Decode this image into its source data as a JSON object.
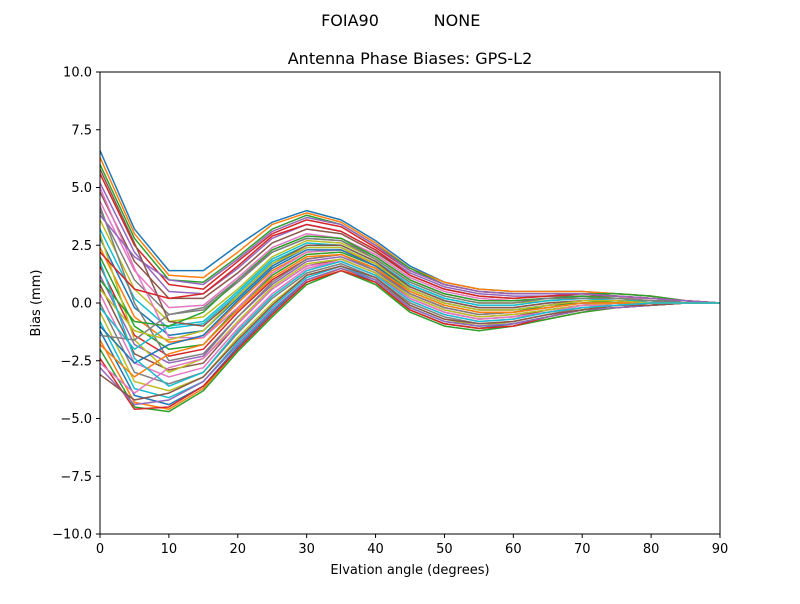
{
  "figure": {
    "suptitle_left": "FOIA90",
    "suptitle_right": "NONE"
  },
  "chart_data": {
    "type": "line",
    "title": "Antenna Phase Biases: GPS-L2",
    "xlabel": "Elvation angle (degrees)",
    "ylabel": "Bias (mm)",
    "xlim": [
      0,
      90
    ],
    "ylim": [
      -10,
      10
    ],
    "xticks": [
      0,
      10,
      20,
      30,
      40,
      50,
      60,
      70,
      80,
      90
    ],
    "yticks": [
      -10.0,
      -7.5,
      -5.0,
      -2.5,
      0.0,
      2.5,
      5.0,
      7.5,
      10.0
    ],
    "grid": false,
    "legend": "none",
    "colors": [
      "#1f77b4",
      "#ff7f0e",
      "#2ca02c",
      "#d62728",
      "#9467bd",
      "#8c564b",
      "#e377c2",
      "#7f7f7f",
      "#bcbd22",
      "#17becf"
    ],
    "x": [
      0,
      5,
      10,
      15,
      20,
      25,
      30,
      35,
      40,
      45,
      50,
      55,
      60,
      65,
      70,
      75,
      80,
      85,
      90
    ],
    "series": [
      {
        "values": [
          6.6,
          3.2,
          1.4,
          1.4,
          2.5,
          3.5,
          4.0,
          3.6,
          2.7,
          1.6,
          0.9,
          0.6,
          0.5,
          0.5,
          0.5,
          0.4,
          0.3,
          0.1,
          0.0
        ]
      },
      {
        "values": [
          6.3,
          3.0,
          1.2,
          1.1,
          2.2,
          3.4,
          3.9,
          3.5,
          2.6,
          1.5,
          0.9,
          0.6,
          0.5,
          0.5,
          0.5,
          0.4,
          0.3,
          0.1,
          0.0
        ]
      },
      {
        "values": [
          6.0,
          2.8,
          1.0,
          0.9,
          2.0,
          3.2,
          3.8,
          3.4,
          2.5,
          1.5,
          0.8,
          0.5,
          0.4,
          0.4,
          0.4,
          0.4,
          0.3,
          0.1,
          0.0
        ]
      },
      {
        "values": [
          5.6,
          2.5,
          0.8,
          0.6,
          1.8,
          3.0,
          3.6,
          3.3,
          2.4,
          1.4,
          0.8,
          0.5,
          0.4,
          0.4,
          0.4,
          0.3,
          0.2,
          0.1,
          0.0
        ]
      },
      {
        "values": [
          5.2,
          2.2,
          0.5,
          0.4,
          1.5,
          2.8,
          3.4,
          3.1,
          2.3,
          1.3,
          0.7,
          0.4,
          0.3,
          0.3,
          0.4,
          0.3,
          0.2,
          0.1,
          0.0
        ]
      },
      {
        "values": [
          4.8,
          1.8,
          0.2,
          0.2,
          1.3,
          2.6,
          3.2,
          3.0,
          2.2,
          1.2,
          0.6,
          0.3,
          0.2,
          0.3,
          0.3,
          0.3,
          0.2,
          0.1,
          0.0
        ]
      },
      {
        "values": [
          4.4,
          1.4,
          -0.2,
          -0.1,
          1.1,
          2.4,
          3.0,
          2.8,
          2.1,
          1.1,
          0.5,
          0.2,
          0.1,
          0.2,
          0.3,
          0.2,
          0.2,
          0.1,
          0.0
        ]
      },
      {
        "values": [
          4.0,
          1.0,
          -0.5,
          -0.3,
          0.9,
          2.2,
          2.8,
          2.7,
          2.0,
          1.0,
          0.4,
          0.1,
          0.1,
          0.2,
          0.2,
          0.2,
          0.1,
          0.1,
          0.0
        ]
      },
      {
        "values": [
          3.6,
          0.6,
          -0.8,
          -0.6,
          0.6,
          2.0,
          2.7,
          2.6,
          1.9,
          0.9,
          0.3,
          0.0,
          0.0,
          0.1,
          0.2,
          0.2,
          0.1,
          0.0,
          0.0
        ]
      },
      {
        "values": [
          3.2,
          0.2,
          -1.1,
          -0.9,
          0.4,
          1.8,
          2.5,
          2.5,
          1.8,
          0.8,
          0.2,
          -0.1,
          -0.1,
          0.1,
          0.2,
          0.1,
          0.1,
          0.0,
          0.0
        ]
      },
      {
        "values": [
          2.8,
          -0.2,
          -1.4,
          -1.2,
          0.2,
          1.6,
          2.4,
          2.4,
          1.7,
          0.7,
          0.1,
          -0.2,
          -0.2,
          0.0,
          0.1,
          0.1,
          0.1,
          0.0,
          0.0
        ]
      },
      {
        "values": [
          2.4,
          -0.6,
          -1.7,
          -1.5,
          0.0,
          1.4,
          2.2,
          2.3,
          1.7,
          0.6,
          0.0,
          -0.3,
          -0.3,
          -0.1,
          0.1,
          0.1,
          0.1,
          0.0,
          0.0
        ]
      },
      {
        "values": [
          2.0,
          -1.0,
          -2.0,
          -1.8,
          -0.2,
          1.2,
          2.1,
          2.2,
          1.6,
          0.5,
          -0.1,
          -0.4,
          -0.4,
          -0.1,
          0.0,
          0.1,
          0.0,
          0.0,
          0.0
        ]
      },
      {
        "values": [
          1.6,
          -1.4,
          -2.3,
          -2.0,
          -0.4,
          1.0,
          1.9,
          2.1,
          1.5,
          0.4,
          -0.2,
          -0.5,
          -0.4,
          -0.2,
          0.0,
          0.0,
          0.0,
          0.0,
          0.0
        ]
      },
      {
        "values": [
          1.2,
          -1.8,
          -2.6,
          -2.3,
          -0.6,
          0.8,
          1.8,
          2.0,
          1.4,
          0.3,
          -0.3,
          -0.6,
          -0.5,
          -0.3,
          -0.1,
          0.0,
          0.0,
          0.0,
          0.0
        ]
      },
      {
        "values": [
          0.8,
          -2.2,
          -2.9,
          -2.6,
          -0.9,
          0.6,
          1.6,
          1.9,
          1.3,
          0.2,
          -0.4,
          -0.7,
          -0.6,
          -0.3,
          -0.1,
          0.0,
          0.0,
          0.0,
          0.0
        ]
      },
      {
        "values": [
          0.4,
          -2.6,
          -3.2,
          -2.8,
          -1.1,
          0.4,
          1.5,
          1.8,
          1.2,
          0.1,
          -0.5,
          -0.8,
          -0.7,
          -0.4,
          -0.2,
          -0.1,
          0.0,
          0.0,
          0.0
        ]
      },
      {
        "values": [
          0.0,
          -3.0,
          -3.5,
          -3.0,
          -1.3,
          0.2,
          1.3,
          1.7,
          1.1,
          0.0,
          -0.6,
          -0.9,
          -0.8,
          -0.5,
          -0.2,
          -0.1,
          0.0,
          0.0,
          0.0
        ]
      },
      {
        "values": [
          -0.4,
          -3.4,
          -3.8,
          -3.2,
          -1.5,
          0.0,
          1.2,
          1.6,
          1.0,
          -0.1,
          -0.7,
          -1.0,
          -0.8,
          -0.5,
          -0.3,
          -0.1,
          -0.1,
          0.0,
          0.0
        ]
      },
      {
        "values": [
          -0.8,
          -3.7,
          -4.1,
          -3.4,
          -1.7,
          -0.2,
          1.1,
          1.6,
          1.0,
          -0.2,
          -0.8,
          -1.0,
          -0.9,
          -0.6,
          -0.3,
          -0.2,
          -0.1,
          0.0,
          0.0
        ]
      },
      {
        "values": [
          -1.2,
          -4.0,
          -4.4,
          -3.6,
          -1.9,
          -0.4,
          1.0,
          1.5,
          0.9,
          -0.3,
          -0.9,
          -1.1,
          -0.9,
          -0.6,
          -0.3,
          -0.2,
          -0.1,
          0.0,
          0.0
        ]
      },
      {
        "values": [
          -1.6,
          -4.3,
          -4.6,
          -3.7,
          -2.0,
          -0.5,
          0.9,
          1.5,
          0.8,
          -0.3,
          -0.9,
          -1.1,
          -1.0,
          -0.7,
          -0.4,
          -0.2,
          -0.1,
          0.0,
          0.0
        ]
      },
      {
        "values": [
          -2.0,
          -4.5,
          -4.7,
          -3.8,
          -2.1,
          -0.6,
          0.8,
          1.4,
          0.8,
          -0.4,
          -1.0,
          -1.2,
          -1.0,
          -0.7,
          -0.4,
          -0.2,
          -0.1,
          0.0,
          0.0
        ]
      },
      {
        "values": [
          -2.4,
          -4.6,
          -4.5,
          -3.6,
          -2.0,
          -0.5,
          0.9,
          1.4,
          0.9,
          -0.3,
          -0.9,
          -1.1,
          -1.0,
          -0.6,
          -0.3,
          -0.2,
          -0.1,
          0.0,
          0.0
        ]
      },
      {
        "values": [
          -2.8,
          -4.4,
          -4.2,
          -3.4,
          -1.8,
          -0.3,
          1.0,
          1.5,
          1.0,
          -0.2,
          -0.8,
          -1.0,
          -0.9,
          -0.6,
          -0.3,
          -0.2,
          -0.1,
          0.0,
          0.0
        ]
      },
      {
        "values": [
          -3.1,
          -4.2,
          -3.9,
          -3.2,
          -1.6,
          -0.1,
          1.2,
          1.6,
          1.1,
          -0.1,
          -0.7,
          -0.9,
          -0.8,
          -0.5,
          -0.3,
          -0.1,
          -0.1,
          0.0,
          0.0
        ]
      },
      {
        "values": [
          5.0,
          1.5,
          -1.5,
          -1.5,
          -0.2,
          1.3,
          2.2,
          2.3,
          1.6,
          0.6,
          0.0,
          -0.3,
          -0.3,
          -0.1,
          0.1,
          0.1,
          0.0,
          0.0,
          0.0
        ]
      },
      {
        "values": [
          4.2,
          0.0,
          -2.5,
          -2.2,
          -0.6,
          0.9,
          1.9,
          2.1,
          1.4,
          0.4,
          -0.2,
          -0.5,
          -0.4,
          -0.2,
          0.0,
          0.0,
          0.0,
          0.0,
          0.0
        ]
      },
      {
        "values": [
          3.0,
          -1.6,
          -3.0,
          -2.4,
          -0.8,
          0.7,
          1.7,
          1.9,
          1.3,
          0.3,
          -0.3,
          -0.6,
          -0.5,
          -0.3,
          -0.1,
          0.0,
          0.0,
          0.0,
          0.0
        ]
      },
      {
        "values": [
          -0.2,
          -2.0,
          -1.0,
          -0.8,
          0.5,
          1.9,
          2.6,
          2.5,
          1.8,
          0.8,
          0.2,
          -0.1,
          -0.1,
          0.1,
          0.2,
          0.1,
          0.1,
          0.0,
          0.0
        ]
      },
      {
        "values": [
          -1.0,
          -2.6,
          -1.8,
          -1.4,
          0.1,
          1.5,
          2.3,
          2.3,
          1.6,
          0.6,
          0.0,
          -0.3,
          -0.3,
          -0.1,
          0.1,
          0.1,
          0.0,
          0.0,
          0.0
        ]
      },
      {
        "values": [
          -1.8,
          -3.2,
          -2.2,
          -1.8,
          -0.3,
          1.1,
          2.0,
          2.1,
          1.5,
          0.5,
          -0.1,
          -0.4,
          -0.4,
          -0.2,
          0.0,
          0.0,
          0.0,
          0.0,
          0.0
        ]
      },
      {
        "values": [
          1.0,
          -0.8,
          -1.0,
          -0.4,
          1.0,
          2.3,
          2.9,
          2.8,
          2.0,
          1.0,
          0.4,
          0.1,
          0.1,
          0.2,
          0.3,
          0.2,
          0.1,
          0.0,
          0.0
        ]
      },
      {
        "values": [
          2.2,
          0.6,
          0.2,
          0.4,
          1.6,
          2.9,
          3.4,
          3.1,
          2.3,
          1.2,
          0.6,
          0.3,
          0.2,
          0.3,
          0.4,
          0.3,
          0.2,
          0.1,
          0.0
        ]
      },
      {
        "values": [
          3.8,
          2.0,
          1.0,
          0.8,
          1.9,
          3.1,
          3.7,
          3.4,
          2.5,
          1.4,
          0.8,
          0.5,
          0.4,
          0.4,
          0.4,
          0.3,
          0.2,
          0.1,
          0.0
        ]
      },
      {
        "values": [
          5.8,
          2.6,
          -0.8,
          -1.0,
          0.3,
          1.7,
          2.5,
          2.5,
          1.8,
          0.7,
          0.1,
          -0.2,
          -0.2,
          0.0,
          0.1,
          0.1,
          0.0,
          0.0,
          0.0
        ]
      },
      {
        "values": [
          -2.6,
          -3.9,
          -2.8,
          -2.4,
          -0.9,
          0.6,
          1.6,
          1.8,
          1.2,
          0.2,
          -0.4,
          -0.7,
          -0.6,
          -0.4,
          -0.1,
          -0.1,
          0.0,
          0.0,
          0.0
        ]
      },
      {
        "values": [
          -1.4,
          -1.6,
          -0.5,
          -0.2,
          1.0,
          2.2,
          2.8,
          2.7,
          1.9,
          0.9,
          0.3,
          0.0,
          0.0,
          0.2,
          0.2,
          0.2,
          0.1,
          0.0,
          0.0
        ]
      },
      {
        "values": [
          0.6,
          -1.2,
          -1.6,
          -1.2,
          0.3,
          1.7,
          2.4,
          2.4,
          1.7,
          0.6,
          0.0,
          -0.3,
          -0.3,
          -0.1,
          0.1,
          0.1,
          0.0,
          0.0,
          0.0
        ]
      },
      {
        "values": [
          1.8,
          -2.4,
          -3.6,
          -3.0,
          -1.2,
          0.3,
          1.4,
          1.8,
          1.2,
          0.1,
          -0.5,
          -0.8,
          -0.7,
          -0.4,
          -0.2,
          -0.1,
          0.0,
          0.0,
          0.0
        ]
      }
    ]
  }
}
